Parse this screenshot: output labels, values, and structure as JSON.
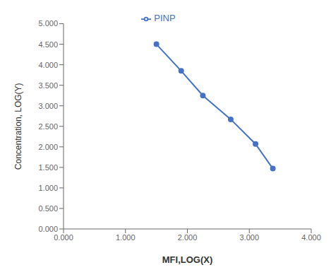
{
  "chart_data": {
    "type": "line",
    "x": [
      1.5,
      1.9,
      2.25,
      2.7,
      3.1,
      3.38
    ],
    "series": [
      {
        "name": "PINP",
        "color": "#4472C4",
        "values": [
          4.5,
          3.85,
          3.25,
          2.67,
          2.07,
          1.47
        ],
        "marker": "circle"
      }
    ],
    "xlabel": "MFI,LOG(X)",
    "ylabel": "Concentration, LOG(Y)",
    "xlim": [
      0.0,
      4.0
    ],
    "ylim": [
      0.0,
      5.0
    ],
    "xticks": [
      {
        "value": 0.0,
        "label": "0.000"
      },
      {
        "value": 1.0,
        "label": "1.000"
      },
      {
        "value": 2.0,
        "label": "2.000"
      },
      {
        "value": 3.0,
        "label": "3.000"
      },
      {
        "value": 4.0,
        "label": "4.000"
      }
    ],
    "yticks": [
      {
        "value": 0.0,
        "label": "0.000"
      },
      {
        "value": 0.5,
        "label": "0.500"
      },
      {
        "value": 1.0,
        "label": "1.000"
      },
      {
        "value": 1.5,
        "label": "1.500"
      },
      {
        "value": 2.0,
        "label": "2.000"
      },
      {
        "value": 2.5,
        "label": "2.500"
      },
      {
        "value": 3.0,
        "label": "3.000"
      },
      {
        "value": 3.5,
        "label": "3.500"
      },
      {
        "value": 4.0,
        "label": "4.000"
      },
      {
        "value": 4.5,
        "label": "4.500"
      },
      {
        "value": 5.0,
        "label": "5.000"
      }
    ],
    "legend": "top",
    "grid": false
  }
}
